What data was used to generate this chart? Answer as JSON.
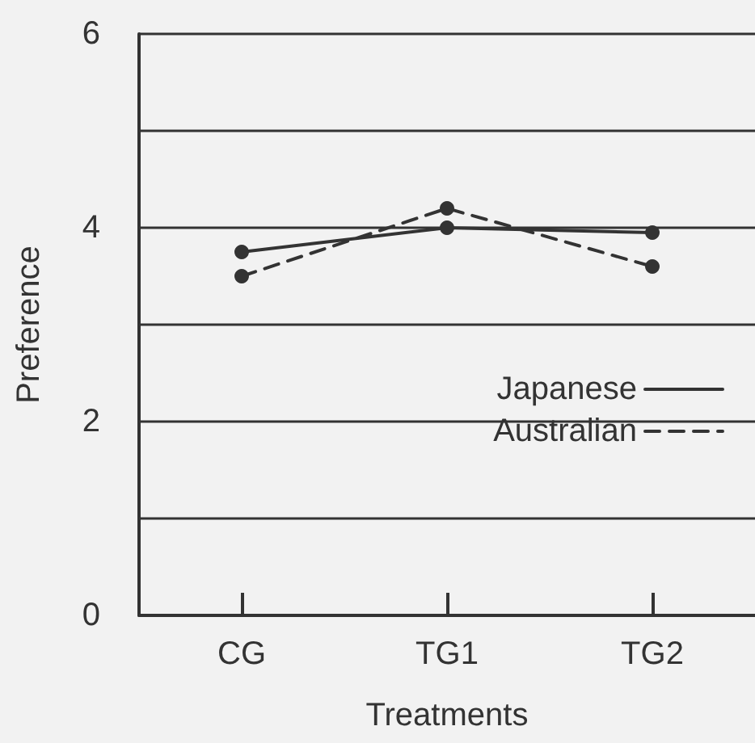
{
  "chart_data": {
    "type": "line",
    "xlabel": "Treatments",
    "ylabel": "Preference",
    "categories": [
      "CG",
      "TG1",
      "TG2"
    ],
    "series": [
      {
        "name": "Japanese",
        "color": "#333333",
        "values": [
          3.75,
          4.0,
          3.95
        ],
        "line_style": "solid"
      },
      {
        "name": "Australian",
        "color": "#333333",
        "values": [
          3.5,
          4.2,
          3.6
        ],
        "line_style": "dashed"
      }
    ],
    "ylim": [
      0,
      6
    ],
    "yticks": [
      0,
      {
        "value": 1,
        "label": null
      },
      2,
      {
        "value": 3,
        "label": null
      },
      4,
      {
        "value": 5,
        "label": null
      },
      6
    ],
    "grid": "y",
    "legend": "right",
    "marker": "circle"
  }
}
